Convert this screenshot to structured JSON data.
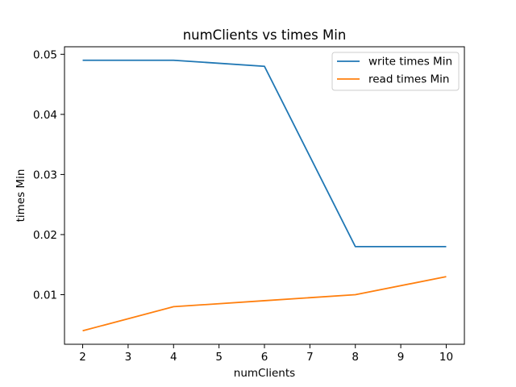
{
  "chart_data": {
    "type": "line",
    "title": "numClients vs times Min",
    "xlabel": "numClients",
    "ylabel": "times Min",
    "x": [
      2,
      4,
      6,
      8,
      10
    ],
    "xlim": [
      1.6,
      10.4
    ],
    "ylim": [
      0.00175,
      0.05125
    ],
    "xticks": [
      2,
      3,
      4,
      5,
      6,
      7,
      8,
      9,
      10
    ],
    "yticks": [
      0.01,
      0.02,
      0.03,
      0.04,
      0.05
    ],
    "ytick_labels": [
      "0.01",
      "0.02",
      "0.03",
      "0.04",
      "0.05"
    ],
    "grid": false,
    "legend_position": "top-right",
    "series": [
      {
        "name": "write times Min",
        "color": "#1f77b4",
        "values": [
          0.049,
          0.049,
          0.048,
          0.018,
          0.018
        ]
      },
      {
        "name": "read times Min",
        "color": "#ff7f0e",
        "values": [
          0.004,
          0.008,
          0.009,
          0.01,
          0.013
        ]
      }
    ]
  }
}
